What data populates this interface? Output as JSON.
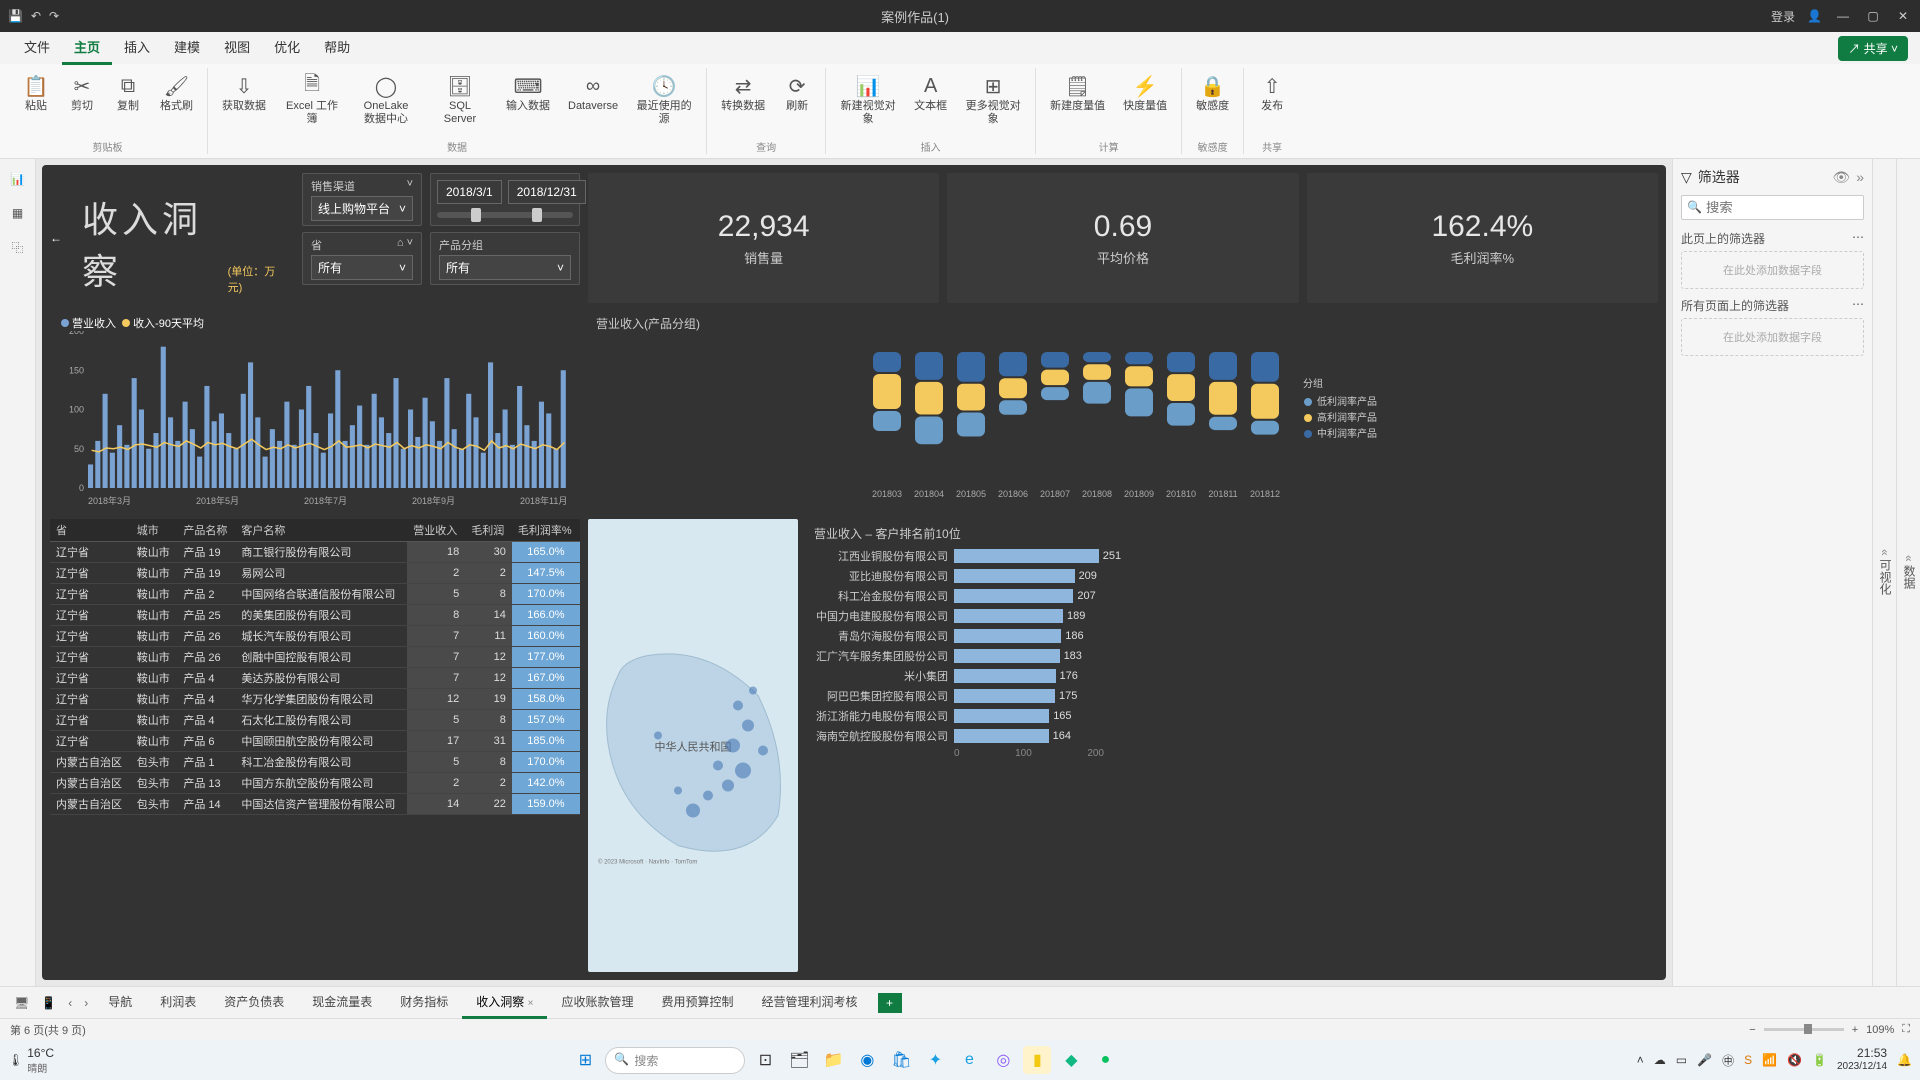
{
  "window": {
    "title": "案例作品(1)",
    "login": "登录"
  },
  "menu": {
    "tabs": [
      "文件",
      "主页",
      "插入",
      "建模",
      "视图",
      "优化",
      "帮助"
    ],
    "active": 1,
    "share": "共享"
  },
  "ribbon": {
    "groups": [
      {
        "label": "剪贴板",
        "buttons": [
          {
            "icon": "📋",
            "label": "粘贴"
          },
          {
            "icon": "✂",
            "label": "剪切"
          },
          {
            "icon": "⧉",
            "label": "复制"
          },
          {
            "icon": "🖌",
            "label": "格式刷"
          }
        ]
      },
      {
        "label": "数据",
        "buttons": [
          {
            "icon": "⇩",
            "label": "获取数据"
          },
          {
            "icon": "🗎",
            "label": "Excel 工作簿"
          },
          {
            "icon": "◯",
            "label": "OneLake 数据中心"
          },
          {
            "icon": "🗄",
            "label": "SQL Server"
          },
          {
            "icon": "⌨",
            "label": "输入数据"
          },
          {
            "icon": "∞",
            "label": "Dataverse"
          },
          {
            "icon": "🕓",
            "label": "最近使用的源"
          }
        ]
      },
      {
        "label": "查询",
        "buttons": [
          {
            "icon": "⇄",
            "label": "转换数据"
          },
          {
            "icon": "⟳",
            "label": "刷新"
          }
        ]
      },
      {
        "label": "插入",
        "buttons": [
          {
            "icon": "📊",
            "label": "新建视觉对象"
          },
          {
            "icon": "A",
            "label": "文本框"
          },
          {
            "icon": "⊞",
            "label": "更多视觉对象"
          }
        ]
      },
      {
        "label": "计算",
        "buttons": [
          {
            "icon": "🗒",
            "label": "新建度量值"
          },
          {
            "icon": "⚡",
            "label": "快度量值"
          }
        ]
      },
      {
        "label": "敏感度",
        "buttons": [
          {
            "icon": "🔒",
            "label": "敏感度"
          }
        ]
      },
      {
        "label": "共享",
        "buttons": [
          {
            "icon": "⇧",
            "label": "发布"
          }
        ]
      }
    ]
  },
  "filterpane": {
    "title": "筛选器",
    "search_placeholder": "搜索",
    "section1": "此页上的筛选器",
    "section2": "所有页面上的筛选器",
    "dropzone": "在此处添加数据字段"
  },
  "side_tabs": [
    "可视化",
    "数据"
  ],
  "dashboard": {
    "title": "收入洞察",
    "unit": "(单位：万元)",
    "slicers": {
      "channel": {
        "label": "销售渠道",
        "value": "线上购物平台"
      },
      "province": {
        "label": "省",
        "value": "所有"
      },
      "product": {
        "label": "产品分组",
        "value": "所有"
      },
      "date_from": "2018/3/1",
      "date_to": "2018/12/31"
    },
    "kpis": [
      {
        "value": "22,934",
        "label": "销售量"
      },
      {
        "value": "0.69",
        "label": "平均价格"
      },
      {
        "value": "162.4%",
        "label": "毛利润率%"
      }
    ],
    "line_chart": {
      "legend": [
        {
          "label": "营业收入",
          "color": "#7aa3d4"
        },
        {
          "label": "收入-90天平均",
          "color": "#f4c95d"
        }
      ],
      "y_max": 200,
      "y_ticks": [
        0,
        50,
        100,
        150,
        200
      ],
      "x_labels": [
        "2018年3月",
        "2018年5月",
        "2018年7月",
        "2018年9月",
        "2018年11月"
      ],
      "bar_color": "#7aa3d4",
      "avg_color": "#f4c95d",
      "bars": [
        30,
        60,
        120,
        45,
        80,
        55,
        140,
        100,
        50,
        70,
        180,
        90,
        60,
        110,
        75,
        40,
        130,
        85,
        95,
        70,
        50,
        120,
        160,
        90,
        40,
        75,
        60,
        110,
        55,
        100,
        130,
        70,
        45,
        95,
        150,
        60,
        80,
        105,
        55,
        120,
        90,
        70,
        140,
        50,
        100,
        65,
        115,
        85,
        60,
        140,
        75,
        50,
        120,
        90,
        45,
        160,
        70,
        100,
        55,
        130,
        80,
        60,
        110,
        95,
        50,
        150
      ],
      "avg": [
        48,
        46,
        51,
        50,
        52,
        49,
        55,
        56,
        54,
        52,
        58,
        55,
        53,
        60,
        56,
        51,
        58,
        55,
        57,
        53,
        50,
        56,
        62,
        55,
        49,
        52,
        50,
        55,
        51,
        54,
        57,
        53,
        49,
        53,
        60,
        52,
        53,
        55,
        51,
        56,
        54,
        52,
        58,
        50,
        54,
        51,
        55,
        53,
        50,
        58,
        52,
        49,
        55,
        53,
        48,
        60,
        51,
        54,
        50,
        56,
        53,
        50,
        55,
        53,
        49,
        58
      ]
    },
    "ribbon_chart": {
      "title": "营业收入(产品分组)",
      "x_labels": [
        "201803",
        "201804",
        "201805",
        "201806",
        "201807",
        "201808",
        "201809",
        "201810",
        "201811",
        "201812"
      ],
      "legend_title": "分组",
      "series": [
        {
          "label": "低利润率产品",
          "color": "#6b9dc9"
        },
        {
          "label": "高利润率产品",
          "color": "#f4c95d"
        },
        {
          "label": "中利润率产品",
          "color": "#3a6aa3"
        }
      ]
    },
    "table": {
      "columns": [
        "省",
        "城市",
        "产品名称",
        "客户名称",
        "营业收入",
        "毛利润",
        "毛利润率%"
      ],
      "rows": [
        [
          "辽宁省",
          "鞍山市",
          "产品 19",
          "商工银行股份有限公司",
          "18",
          "30",
          "165.0%"
        ],
        [
          "辽宁省",
          "鞍山市",
          "产品 19",
          "易网公司",
          "2",
          "2",
          "147.5%"
        ],
        [
          "辽宁省",
          "鞍山市",
          "产品 2",
          "中国网络合联通信股份有限公司",
          "5",
          "8",
          "170.0%"
        ],
        [
          "辽宁省",
          "鞍山市",
          "产品 25",
          "的美集团股份有限公司",
          "8",
          "14",
          "166.0%"
        ],
        [
          "辽宁省",
          "鞍山市",
          "产品 26",
          "城长汽车股份有限公司",
          "7",
          "11",
          "160.0%"
        ],
        [
          "辽宁省",
          "鞍山市",
          "产品 26",
          "创融中国控股有限公司",
          "7",
          "12",
          "177.0%"
        ],
        [
          "辽宁省",
          "鞍山市",
          "产品 4",
          "美达苏股份有限公司",
          "7",
          "12",
          "167.0%"
        ],
        [
          "辽宁省",
          "鞍山市",
          "产品 4",
          "华万化学集团股份有限公司",
          "12",
          "19",
          "158.0%"
        ],
        [
          "辽宁省",
          "鞍山市",
          "产品 4",
          "石太化工股份有限公司",
          "5",
          "8",
          "157.0%"
        ],
        [
          "辽宁省",
          "鞍山市",
          "产品 6",
          "中国颐田航空股份有限公司",
          "17",
          "31",
          "185.0%"
        ],
        [
          "内蒙古自治区",
          "包头市",
          "产品 1",
          "科工冶金股份有限公司",
          "5",
          "8",
          "170.0%"
        ],
        [
          "内蒙古自治区",
          "包头市",
          "产品 13",
          "中国方东航空股份有限公司",
          "2",
          "2",
          "142.0%"
        ],
        [
          "内蒙古自治区",
          "包头市",
          "产品 14",
          "中国达信资产管理股份有限公司",
          "14",
          "22",
          "159.0%"
        ]
      ]
    },
    "map": {
      "country_label": "中华人民共和国",
      "attribution": "© 2023 Microsoft Corporation · GS(2022)1731 · Terms 2023 NavInfo, © 2023 TomTom, © 2023 Microsoft"
    },
    "bar_chart": {
      "title": "营业收入 – 客户排名前10位",
      "bar_color": "#8fb7dd",
      "max": 260,
      "x_ticks": [
        0,
        100,
        200
      ],
      "rows": [
        {
          "label": "江西业铜股份有限公司",
          "value": 251
        },
        {
          "label": "亚比迪股份有限公司",
          "value": 209
        },
        {
          "label": "科工冶金股份有限公司",
          "value": 207
        },
        {
          "label": "中国力电建股股份有限公司",
          "value": 189
        },
        {
          "label": "青岛尔海股份有限公司",
          "value": 186
        },
        {
          "label": "汇广汽车服务集团股份公司",
          "value": 183
        },
        {
          "label": "米小集团",
          "value": 176
        },
        {
          "label": "阿巴巴集团控股有限公司",
          "value": 175
        },
        {
          "label": "浙江浙能力电股份有限公司",
          "value": 165
        },
        {
          "label": "海南空航控股股份有限公司",
          "value": 164
        }
      ]
    }
  },
  "pagetabs": {
    "tabs": [
      "导航",
      "利润表",
      "资产负债表",
      "现金流量表",
      "财务指标",
      "收入洞察",
      "应收账款管理",
      "费用预算控制",
      "经营管理利润考核"
    ],
    "active": 5
  },
  "status": {
    "page": "第 6 页(共 9 页)",
    "zoom": "109%"
  },
  "taskbar": {
    "weather": {
      "temp": "16°C",
      "cond": "晴朗"
    },
    "search_placeholder": "搜索",
    "clock": {
      "time": "21:53",
      "date": "2023/12/14"
    }
  },
  "colors": {
    "dash_bg": "#333333",
    "accent": "#107c41"
  }
}
